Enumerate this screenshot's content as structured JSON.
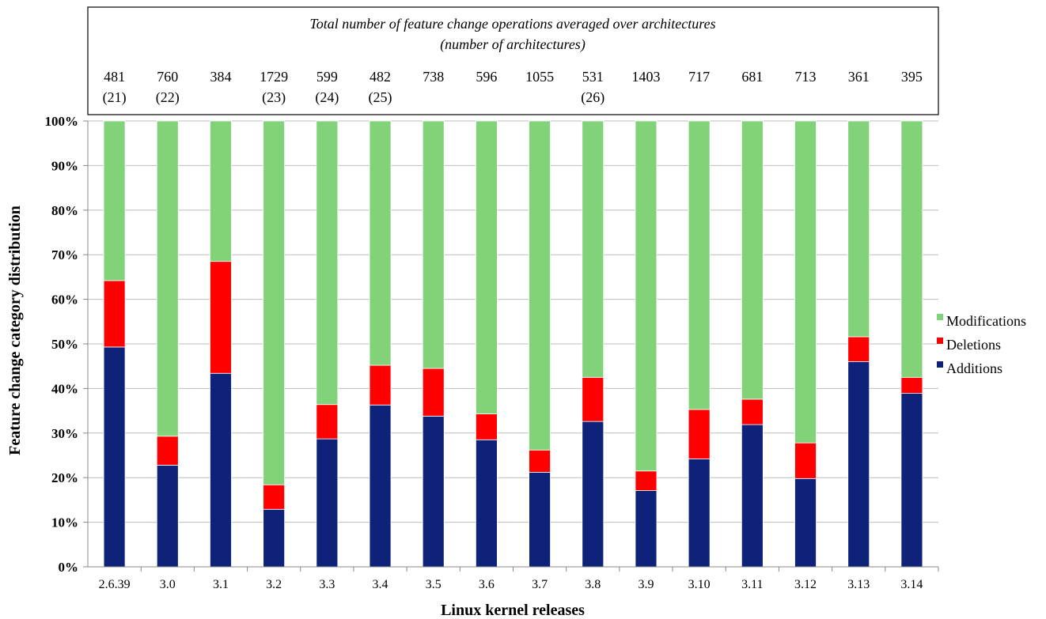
{
  "chart_data": {
    "type": "bar",
    "stacked": true,
    "normalized": true,
    "xlabel": "Linux kernel releases",
    "ylabel": "Feature change category distribution",
    "ylim": [
      0,
      100
    ],
    "ytick_labels": [
      "0%",
      "10%",
      "20%",
      "30%",
      "40%",
      "50%",
      "60%",
      "70%",
      "80%",
      "90%",
      "100%"
    ],
    "grid": true,
    "legend_position": "right",
    "categories": [
      "2.6.39",
      "3.0",
      "3.1",
      "3.2",
      "3.3",
      "3.4",
      "3.5",
      "3.6",
      "3.7",
      "3.8",
      "3.9",
      "3.10",
      "3.11",
      "3.12",
      "3.13",
      "3.14"
    ],
    "series": [
      {
        "name": "Additions",
        "color": "#0d2278",
        "values": [
          49.3,
          22.8,
          43.4,
          12.9,
          28.7,
          36.3,
          33.8,
          28.5,
          21.2,
          32.6,
          17.1,
          24.2,
          31.9,
          19.8,
          46.0,
          38.9
        ]
      },
      {
        "name": "Deletions",
        "color": "#ff0000",
        "values": [
          14.9,
          6.5,
          25.1,
          5.5,
          7.7,
          8.9,
          10.7,
          5.8,
          5.0,
          9.9,
          4.4,
          11.1,
          5.7,
          8.0,
          5.6,
          3.6
        ]
      },
      {
        "name": "Modifications",
        "color": "#82d27a",
        "values": [
          35.8,
          70.7,
          31.5,
          81.6,
          63.6,
          54.8,
          55.5,
          65.7,
          73.8,
          57.5,
          78.5,
          64.7,
          62.4,
          72.2,
          48.4,
          57.5
        ]
      }
    ],
    "header": {
      "title_line1": "Total number of feature change operations averaged over architectures",
      "title_line2": "(number of architectures)",
      "totals": [
        "481",
        "760",
        "384",
        "1729",
        "599",
        "482",
        "738",
        "596",
        "1055",
        "531",
        "1403",
        "717",
        "681",
        "713",
        "361",
        "395"
      ],
      "arch_counts": [
        "(21)",
        "(22)",
        "",
        "(23)",
        "(24)",
        "(25)",
        "",
        "",
        "",
        "(26)",
        "",
        "",
        "",
        "",
        "",
        ""
      ]
    }
  }
}
